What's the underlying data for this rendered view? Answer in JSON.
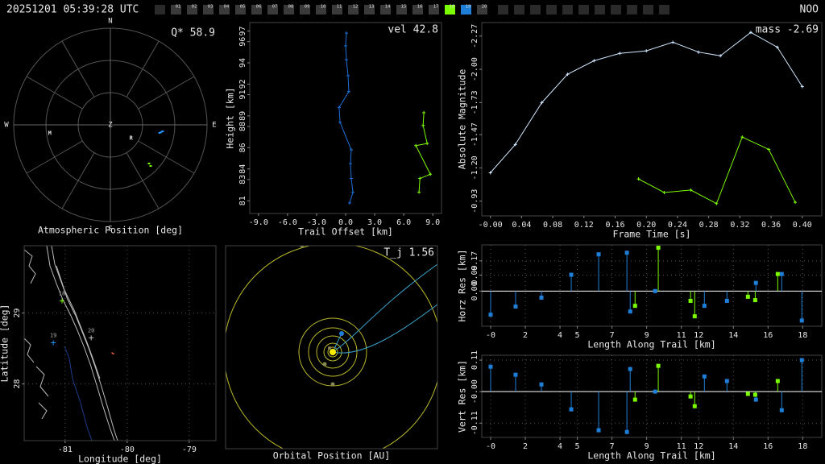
{
  "header": {
    "timestamp": "20251201 05:39:28 UTC",
    "station": "NOO",
    "tabs": [
      {
        "label": "01"
      },
      {
        "label": "02"
      },
      {
        "label": "03"
      },
      {
        "label": "04"
      },
      {
        "label": "05"
      },
      {
        "label": "06"
      },
      {
        "label": "07"
      },
      {
        "label": "08"
      },
      {
        "label": "09"
      },
      {
        "label": "10"
      },
      {
        "label": "11"
      },
      {
        "label": "12"
      },
      {
        "label": "13"
      },
      {
        "label": "14"
      },
      {
        "label": "15"
      },
      {
        "label": "16"
      },
      {
        "label": "17"
      },
      {
        "label": "18",
        "color": "#7cfc00"
      },
      {
        "label": "19",
        "color": "#1e7fd8"
      },
      {
        "label": "20"
      }
    ]
  },
  "chart_data": [
    {
      "type": "polar",
      "xlabel": "Atmospheric Position [deg]",
      "annotation": "Q* 58.9",
      "directions": [
        "N",
        "E",
        "S",
        "W"
      ],
      "center_label": "Z",
      "rlim": [
        0,
        90
      ],
      "markers": [
        {
          "label": "M",
          "azimuth": 262,
          "zenith": 57
        },
        {
          "label": "R",
          "azimuth": 123,
          "zenith": 23
        }
      ],
      "series": [
        {
          "color": "#1e90ff",
          "azimuth": [
            99.3,
            98.1,
            97.0
          ],
          "zenith": [
            46.4,
            47.7,
            49.1
          ]
        },
        {
          "color": "#7cfc00",
          "azimuth": [
            135,
            135.6
          ],
          "zenith": [
            50.9,
            53.6
          ]
        }
      ]
    },
    {
      "type": "line",
      "annotation": "vel 42.8",
      "xlabel": "Trail Offset [km]",
      "ylabel": "Height [km]",
      "xlim": [
        -9.9,
        9.9
      ],
      "ylim": [
        79.8,
        97.8
      ],
      "xticks": [
        {
          "value": -9,
          "label": "-9.0"
        },
        {
          "value": -6,
          "label": "-6.0"
        },
        {
          "value": -3,
          "label": "-3.0"
        },
        {
          "value": 0,
          "label": "0.0"
        },
        {
          "value": 3,
          "label": "3.0"
        },
        {
          "value": 6,
          "label": "6.0"
        },
        {
          "value": 9,
          "label": "9.0"
        }
      ],
      "yticks": [
        81,
        83,
        84,
        86,
        88,
        89,
        91,
        92,
        94,
        96,
        97
      ],
      "grid": false,
      "series": [
        {
          "color": "#1e6fd9",
          "x": [
            0.08,
            0,
            0.08,
            0.25,
            0.33,
            -0.67,
            -0.58,
            0.58,
            0.5,
            0.58,
            0.75,
            0.42
          ],
          "values": [
            96.8,
            95.6,
            94.3,
            92.8,
            91.3,
            89.8,
            88.4,
            85.8,
            84.5,
            83.1,
            81.8,
            80.8
          ]
        },
        {
          "color": "#7cfc00",
          "x": [
            8.08,
            8.0,
            8.42,
            7.25,
            8.75,
            7.67,
            7.58
          ],
          "values": [
            89.3,
            88.1,
            86.4,
            86.2,
            83.5,
            83.1,
            81.8
          ]
        }
      ]
    },
    {
      "type": "line",
      "annotation": "mass -2.69",
      "xlabel": "Frame Time [s]",
      "ylabel": "Absolute Magnitude",
      "xlim": [
        -0.011,
        0.425
      ],
      "ylim": [
        -0.81,
        -2.38
      ],
      "xticks": [
        {
          "value": 0,
          "label": "-0.00"
        },
        0.04,
        0.08,
        0.12,
        0.16,
        {
          "value": 0.2,
          "label": "0.20"
        },
        0.24,
        0.28,
        0.32,
        0.36,
        {
          "value": 0.4,
          "label": "0.40"
        }
      ],
      "yticks": [
        -2.27,
        {
          "value": -2,
          "label": "-2.00"
        },
        -1.73,
        -1.47,
        {
          "value": -1.2,
          "label": "-1.20"
        },
        -0.93
      ],
      "grid": false,
      "series": [
        {
          "color": "#cfe8ff",
          "x": [
            0,
            0.032,
            0.066,
            0.099,
            0.133,
            0.166,
            0.2,
            0.234,
            0.267,
            0.295,
            0.334,
            0.368,
            0.4
          ],
          "values": [
            -1.16,
            -1.39,
            -1.73,
            -1.96,
            -2.07,
            -2.13,
            -2.15,
            -2.22,
            -2.14,
            -2.11,
            -2.3,
            -2.18,
            -1.86
          ]
        },
        {
          "color": "#7cfc00",
          "x": [
            0.19,
            0.223,
            0.257,
            0.29,
            0.323,
            0.357,
            0.391
          ],
          "values": [
            -1.11,
            -1.0,
            -1.02,
            -0.91,
            -1.45,
            -1.35,
            -0.92
          ]
        }
      ]
    },
    {
      "type": "map",
      "xlabel": "Longitude [deg]",
      "ylabel": "Latitude [deg]",
      "xlim": [
        -81.66,
        -78.57
      ],
      "ylim": [
        27.2,
        29.95
      ],
      "xticks": [
        -81,
        -80,
        -79
      ],
      "yticks": [
        28,
        29
      ],
      "grid": true,
      "stations": {
        "labels": [
          "18",
          "19",
          "20"
        ],
        "lon": [
          -81.05,
          -81.19,
          -80.58
        ],
        "lat": [
          29.17,
          28.58,
          28.65
        ],
        "colors": [
          "#7cfc00",
          "#1e90ff",
          "#c0c0c0"
        ]
      },
      "track": {
        "color": "#ff6a2a",
        "lon": [
          -80.25,
          -80.21
        ],
        "lat": [
          28.44,
          28.42
        ]
      }
    },
    {
      "type": "orbit",
      "annotation": "T_j 1.56",
      "xlabel": "Orbital Position [AU]"
    },
    {
      "type": "stem",
      "xlabel": "Length Along Trail [km]",
      "ylabel": "Horz Res [km]",
      "xlim": [
        -0.51,
        19.1
      ],
      "ylim": [
        -0.198,
        0.26
      ],
      "xticks": [
        {
          "value": 0,
          "label": "-0"
        },
        2,
        4,
        5,
        7,
        9,
        11,
        12,
        14,
        16,
        18
      ],
      "yticks": [
        0.17,
        0.09,
        {
          "value": 0,
          "label": "0.00"
        }
      ],
      "grid": true,
      "series": [
        {
          "color": "#1e7fd8",
          "x": [
            0,
            1.44,
            2.93,
            4.65,
            6.23,
            7.86,
            8.05,
            9.49,
            12.33,
            13.63,
            15.3,
            16.79,
            17.95
          ],
          "values": [
            -0.133,
            -0.087,
            -0.037,
            0.092,
            0.207,
            0.216,
            -0.115,
            0,
            -0.083,
            -0.055,
            0.046,
            0.096,
            -0.166
          ]
        },
        {
          "color": "#7cfc00",
          "x": [
            8.33,
            9.67,
            11.53,
            11.77,
            14.84,
            15.26,
            16.56
          ],
          "values": [
            -0.083,
            0.244,
            -0.055,
            -0.142,
            -0.032,
            -0.051,
            0.096
          ]
        }
      ]
    },
    {
      "type": "stem",
      "xlabel": "Length Along Trail [km]",
      "ylabel": "Vert Res [km]",
      "xlim": [
        -0.51,
        19.1
      ],
      "ylim": [
        -0.16,
        0.127
      ],
      "xticks": [
        {
          "value": 0,
          "label": "-0"
        },
        2,
        4,
        5,
        7,
        9,
        11,
        12,
        14,
        16,
        18
      ],
      "yticks": [
        0.11,
        {
          "value": 0,
          "label": "-0.00"
        },
        -0.11
      ],
      "grid": true,
      "series": [
        {
          "color": "#1e7fd8",
          "x": [
            0,
            1.44,
            2.93,
            4.65,
            6.23,
            7.86,
            8.05,
            9.49,
            12.33,
            13.63,
            15.3,
            16.79,
            17.95
          ],
          "values": [
            0.087,
            0.059,
            0.025,
            -0.062,
            -0.135,
            -0.141,
            0.079,
            0,
            0.053,
            0.037,
            -0.028,
            -0.065,
            0.11
          ]
        },
        {
          "color": "#7cfc00",
          "x": [
            8.33,
            9.67,
            11.53,
            11.77,
            14.84,
            15.26,
            16.56
          ],
          "values": [
            -0.028,
            0.09,
            -0.017,
            -0.051,
            -0.008,
            -0.011,
            0.037
          ]
        }
      ]
    }
  ]
}
